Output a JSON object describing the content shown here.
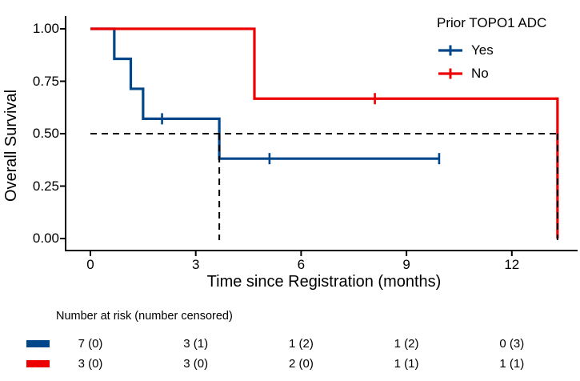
{
  "chart_data": {
    "type": "line",
    "subtype": "kaplan-meier-step-curve",
    "title": "",
    "xlabel": "Time since Registration (months)",
    "ylabel": "Overall Survival",
    "xlim": [
      0,
      13.5
    ],
    "ylim": [
      0,
      1
    ],
    "grid": false,
    "xticks": [
      {
        "label": "0",
        "value": 0
      },
      {
        "label": "3",
        "value": 3
      },
      {
        "label": "6",
        "value": 6
      },
      {
        "label": "9",
        "value": 9
      },
      {
        "label": "12",
        "value": 12
      }
    ],
    "yticks": [
      {
        "label": "0.00",
        "value": 0
      },
      {
        "label": "0.25",
        "value": 0.25
      },
      {
        "label": "0.50",
        "value": 0.5
      },
      {
        "label": "0.75",
        "value": 0.75
      },
      {
        "label": "1.00",
        "value": 1
      }
    ],
    "legend": {
      "title": "Prior TOPO1 ADC",
      "position": "top-right",
      "items": [
        {
          "label": "Yes",
          "color": "#00468B"
        },
        {
          "label": "No",
          "color": "#ED0000"
        }
      ]
    },
    "series": [
      {
        "name": "Yes",
        "color": "#00468B",
        "steps": [
          [
            0,
            1.0
          ],
          [
            0.68,
            0.857
          ],
          [
            1.15,
            0.714
          ],
          [
            1.5,
            0.571
          ],
          [
            3.67,
            0.381
          ],
          [
            9.93,
            0.381
          ]
        ],
        "censor_marks": [
          [
            2.04,
            0.571
          ],
          [
            5.1,
            0.381
          ],
          [
            9.93,
            0.381
          ]
        ]
      },
      {
        "name": "No",
        "color": "#ED0000",
        "steps": [
          [
            0,
            1.0
          ],
          [
            4.67,
            0.667
          ],
          [
            13.3,
            0.0
          ]
        ],
        "censor_marks": [
          [
            8.1,
            0.667
          ]
        ]
      }
    ],
    "reference_lines": {
      "horizontal_survival": 0.5,
      "vertical_median_times": [
        3.67,
        13.3
      ],
      "style": "dashed",
      "color": "#000000"
    },
    "risk_table": {
      "header": "Number at risk (number censored)",
      "times": [
        0,
        3,
        6,
        9,
        12
      ],
      "rows": [
        {
          "group": "Yes",
          "color": "#00468B",
          "values": [
            "7 (0)",
            "3 (1)",
            "1 (2)",
            "1 (2)",
            "0 (3)"
          ]
        },
        {
          "group": "No",
          "color": "#ED0000",
          "values": [
            "3 (0)",
            "3 (0)",
            "2 (0)",
            "1 (1)",
            "1 (1)"
          ]
        }
      ]
    }
  }
}
